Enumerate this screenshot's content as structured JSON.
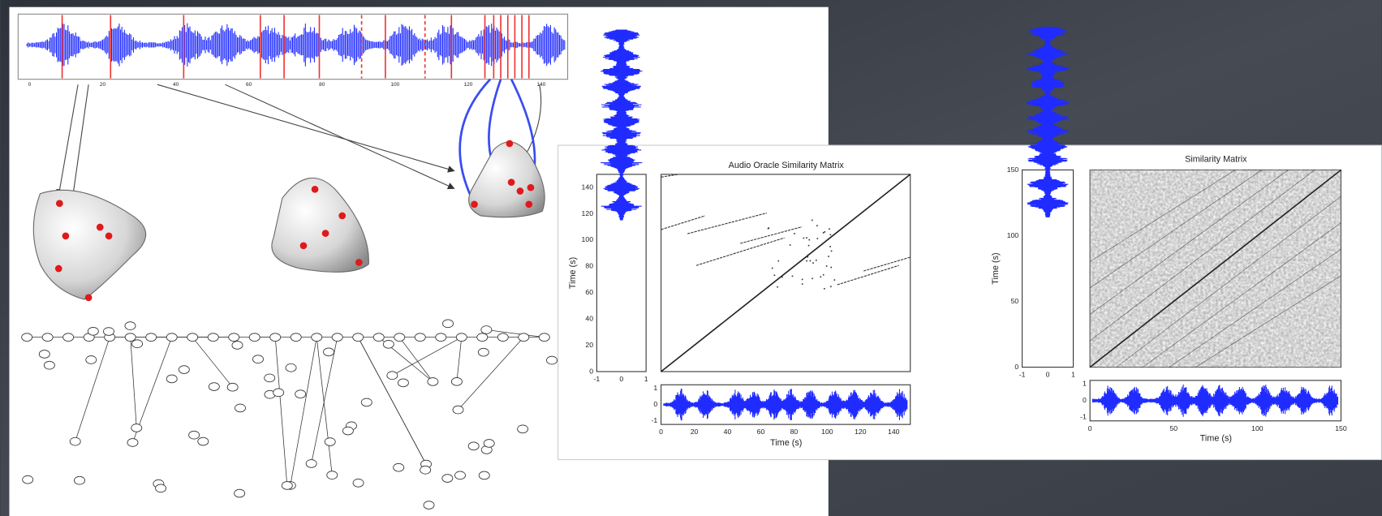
{
  "waveform": {
    "x_ticks": [
      "0",
      "20",
      "40",
      "60",
      "80",
      "100",
      "120",
      "140"
    ]
  },
  "oracle_panel": {
    "title": "Audio Oracle Similarity Matrix",
    "y_label": "Time (s)",
    "x_label": "Time (s)",
    "y_ticks": [
      "0",
      "20",
      "40",
      "60",
      "80",
      "100",
      "120",
      "140"
    ],
    "x_ticks": [
      "0",
      "20",
      "40",
      "60",
      "80",
      "100",
      "120",
      "140"
    ],
    "side_x_ticks": [
      "-1",
      "0",
      "1"
    ],
    "bottom_y_ticks": [
      "1",
      "0",
      "-1"
    ]
  },
  "similarity_panel": {
    "title": "Similarity Matrix",
    "y_label": "Time (s)",
    "x_label": "Time (s)",
    "y_ticks": [
      "0",
      "50",
      "100",
      "150"
    ],
    "x_ticks": [
      "0",
      "50",
      "100",
      "150"
    ],
    "side_x_ticks": [
      "-1",
      "0",
      "1"
    ],
    "bottom_y_ticks": [
      "1",
      "0",
      "-1"
    ]
  }
}
